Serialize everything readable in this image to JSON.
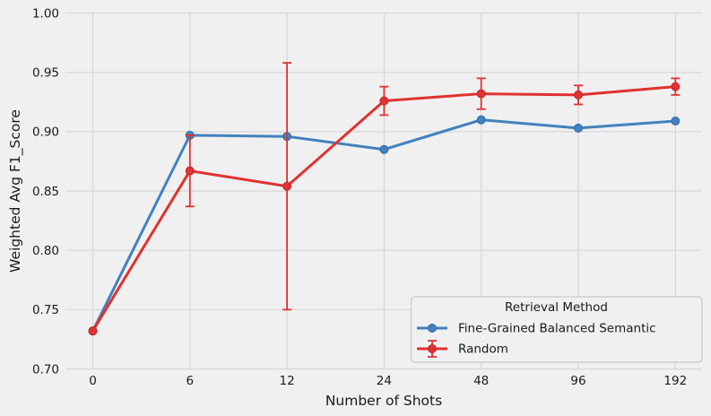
{
  "figure": {
    "background_color": "#f0f0f0",
    "grid_color": "#d8d8d8",
    "text_color": "#1a1a1a",
    "legend_border_color": "#c9c9c9"
  },
  "chart_data": {
    "type": "line",
    "title": "",
    "xlabel": "Number of Shots",
    "ylabel": "Weighted Avg F1_Score",
    "x_categories": [
      "0",
      "6",
      "12",
      "24",
      "48",
      "96",
      "192"
    ],
    "ytick_labels": [
      "0.70",
      "0.75",
      "0.80",
      "0.85",
      "0.90",
      "0.95",
      "1.00"
    ],
    "ylim": [
      0.7,
      1.0
    ],
    "grid": true,
    "legend": {
      "title": "Retrieval Method",
      "position": "lower right",
      "entries": [
        {
          "label": "Fine-Grained Balanced Semantic",
          "color": "#4281bd",
          "has_error_bars": false
        },
        {
          "label": "Random",
          "color": "#e03231",
          "has_error_bars": true
        }
      ]
    },
    "series": [
      {
        "name": "Fine-Grained Balanced Semantic",
        "color": "#4281bd",
        "marker_edge_color": "#306da6",
        "marker": "circle",
        "values": [
          0.732,
          0.897,
          0.896,
          0.885,
          0.91,
          0.903,
          0.909
        ],
        "yerr": [
          0,
          0,
          0,
          0,
          0,
          0,
          0
        ]
      },
      {
        "name": "Random",
        "color": "#e03231",
        "marker_edge_color": "#c02825",
        "marker": "circle",
        "values": [
          0.732,
          0.867,
          0.854,
          0.926,
          0.932,
          0.931,
          0.938
        ],
        "yerr": [
          0,
          0.03,
          0.104,
          0.012,
          0.013,
          0.008,
          0.007
        ]
      }
    ]
  }
}
